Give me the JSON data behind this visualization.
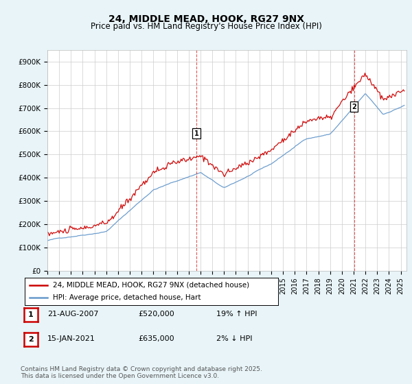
{
  "title": "24, MIDDLE MEAD, HOOK, RG27 9NX",
  "subtitle": "Price paid vs. HM Land Registry's House Price Index (HPI)",
  "ylim": [
    0,
    950000
  ],
  "yticks": [
    0,
    100000,
    200000,
    300000,
    400000,
    500000,
    600000,
    700000,
    800000,
    900000
  ],
  "ytick_labels": [
    "£0",
    "£100K",
    "£200K",
    "£300K",
    "£400K",
    "£500K",
    "£600K",
    "£700K",
    "£800K",
    "£900K"
  ],
  "background_color": "#e8f4f8",
  "plot_bg_color": "#ffffff",
  "grid_color": "#cccccc",
  "line1_color": "#cc0000",
  "line2_color": "#6699cc",
  "ann1_x": 2007.65,
  "ann1_y": 520000,
  "ann2_x": 2021.04,
  "ann2_y": 635000,
  "legend_line1": "24, MIDDLE MEAD, HOOK, RG27 9NX (detached house)",
  "legend_line2": "HPI: Average price, detached house, Hart",
  "footnote": "Contains HM Land Registry data © Crown copyright and database right 2025.\nThis data is licensed under the Open Government Licence v3.0.",
  "table_rows": [
    {
      "num": "1",
      "date": "21-AUG-2007",
      "price": "£520,000",
      "pct": "19% ↑ HPI"
    },
    {
      "num": "2",
      "date": "15-JAN-2021",
      "price": "£635,000",
      "pct": "2% ↓ HPI"
    }
  ],
  "xmin": 1995,
  "xmax": 2025.5,
  "n_points": 364
}
